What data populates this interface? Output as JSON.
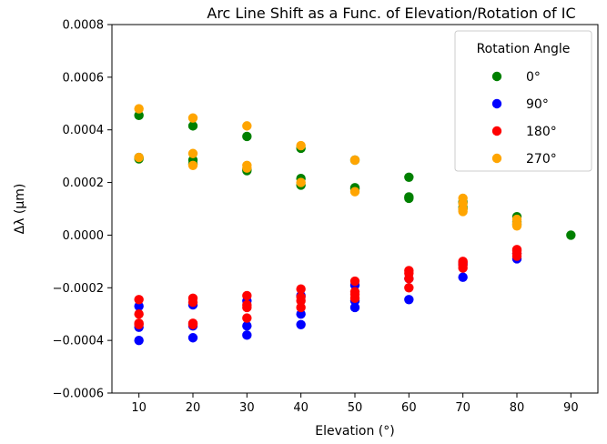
{
  "chart_data": {
    "type": "scatter",
    "title": "Arc Line Shift as a Func. of Elevation/Rotation of IC",
    "xlabel": "Elevation (°)",
    "ylabel": "Δλ (μm)",
    "xlim": [
      5,
      95
    ],
    "ylim": [
      -0.0006,
      0.0008
    ],
    "xticks": [
      10,
      20,
      30,
      40,
      50,
      60,
      70,
      80,
      90
    ],
    "xtick_labels": [
      "10",
      "20",
      "30",
      "40",
      "50",
      "60",
      "70",
      "80",
      "90"
    ],
    "yticks": [
      -0.0006,
      -0.0004,
      -0.0002,
      0.0,
      0.0002,
      0.0004,
      0.0006,
      0.0008
    ],
    "ytick_labels": [
      "−0.0006",
      "−0.0004",
      "−0.0002",
      "0.0000",
      "0.0002",
      "0.0004",
      "0.0006",
      "0.0008"
    ],
    "grid": false,
    "legend": {
      "title": "Rotation Angle",
      "placement": "top-right"
    },
    "series": [
      {
        "name": "0°",
        "color": "#008000",
        "points": [
          [
            10,
            0.000455
          ],
          [
            10,
            0.000295
          ],
          [
            10,
            0.00029
          ],
          [
            20,
            0.000415
          ],
          [
            20,
            0.000285
          ],
          [
            20,
            0.00027
          ],
          [
            30,
            0.000375
          ],
          [
            30,
            0.00025
          ],
          [
            30,
            0.000245
          ],
          [
            40,
            0.00033
          ],
          [
            40,
            0.000215
          ],
          [
            40,
            0.00019
          ],
          [
            50,
            0.000285
          ],
          [
            50,
            0.00018
          ],
          [
            50,
            0.000175
          ],
          [
            60,
            0.00022
          ],
          [
            60,
            0.000145
          ],
          [
            60,
            0.00014
          ],
          [
            70,
            0.000125
          ],
          [
            70,
            0.000105
          ],
          [
            70,
            0.0001
          ],
          [
            80,
            7e-05
          ],
          [
            80,
            5e-05
          ],
          [
            80,
            4e-05
          ],
          [
            90,
            0.0
          ]
        ]
      },
      {
        "name": "90°",
        "color": "#0000ff",
        "points": [
          [
            10,
            -0.00027
          ],
          [
            10,
            -0.00035
          ],
          [
            10,
            -0.0004
          ],
          [
            20,
            -0.000265
          ],
          [
            20,
            -0.000345
          ],
          [
            20,
            -0.00039
          ],
          [
            30,
            -0.00025
          ],
          [
            30,
            -0.000345
          ],
          [
            30,
            -0.00038
          ],
          [
            40,
            -0.00023
          ],
          [
            40,
            -0.0003
          ],
          [
            40,
            -0.00034
          ],
          [
            50,
            -0.00019
          ],
          [
            50,
            -0.00025
          ],
          [
            50,
            -0.000275
          ],
          [
            60,
            -0.000165
          ],
          [
            60,
            -0.000245
          ],
          [
            70,
            -0.00011
          ],
          [
            70,
            -0.00016
          ],
          [
            80,
            -7e-05
          ],
          [
            80,
            -9e-05
          ]
        ]
      },
      {
        "name": "180°",
        "color": "#ff0000",
        "points": [
          [
            10,
            -0.000245
          ],
          [
            10,
            -0.0003
          ],
          [
            10,
            -0.000335
          ],
          [
            10,
            -0.00034
          ],
          [
            20,
            -0.00024
          ],
          [
            20,
            -0.000255
          ],
          [
            20,
            -0.000335
          ],
          [
            20,
            -0.00034
          ],
          [
            30,
            -0.00023
          ],
          [
            30,
            -0.000265
          ],
          [
            30,
            -0.000275
          ],
          [
            30,
            -0.000315
          ],
          [
            40,
            -0.000205
          ],
          [
            40,
            -0.000235
          ],
          [
            40,
            -0.00025
          ],
          [
            40,
            -0.000275
          ],
          [
            50,
            -0.000175
          ],
          [
            50,
            -0.000215
          ],
          [
            50,
            -0.000225
          ],
          [
            50,
            -0.00024
          ],
          [
            60,
            -0.000135
          ],
          [
            60,
            -0.000145
          ],
          [
            60,
            -0.000165
          ],
          [
            60,
            -0.0002
          ],
          [
            70,
            -0.0001
          ],
          [
            70,
            -0.000105
          ],
          [
            70,
            -0.000115
          ],
          [
            70,
            -0.000125
          ],
          [
            80,
            -5.5e-05
          ],
          [
            80,
            -6e-05
          ],
          [
            80,
            -7e-05
          ],
          [
            80,
            -8e-05
          ]
        ]
      },
      {
        "name": "270°",
        "color": "#ffa500",
        "points": [
          [
            10,
            0.00048
          ],
          [
            10,
            0.000295
          ],
          [
            20,
            0.000445
          ],
          [
            20,
            0.00031
          ],
          [
            20,
            0.000265
          ],
          [
            30,
            0.000415
          ],
          [
            30,
            0.000265
          ],
          [
            30,
            0.000255
          ],
          [
            40,
            0.00034
          ],
          [
            40,
            0.0002
          ],
          [
            50,
            0.000285
          ],
          [
            50,
            0.000165
          ],
          [
            70,
            0.00014
          ],
          [
            70,
            0.00012
          ],
          [
            70,
            0.0001
          ],
          [
            70,
            9e-05
          ],
          [
            80,
            6e-05
          ],
          [
            80,
            4.5e-05
          ],
          [
            80,
            3.5e-05
          ]
        ]
      }
    ]
  }
}
